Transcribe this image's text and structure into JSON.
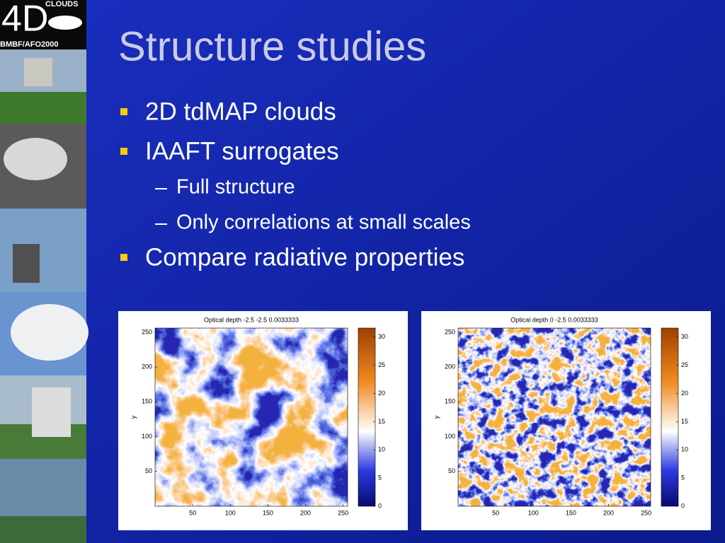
{
  "sidebar": {
    "logo_big": "4D",
    "logo_top": "CLOUDS",
    "logo_bottom": "BMBF/AFO2000"
  },
  "title": "Structure studies",
  "bullets": [
    {
      "text": "2D tdMAP clouds"
    },
    {
      "text": "IAAFT surrogates",
      "sub": [
        "Full structure",
        "Only correlations at small scales"
      ]
    },
    {
      "text": "Compare radiative properties"
    }
  ],
  "figures": [
    {
      "title": "Optical depth -2.5 -2.5 0.0033333",
      "ylabel": "y",
      "xlim": [
        0,
        256
      ],
      "ylim": [
        0,
        256
      ],
      "xticks": [
        50,
        100,
        150,
        200,
        250
      ],
      "yticks": [
        50,
        100,
        150,
        200,
        250
      ],
      "clim": [
        0,
        31.6
      ],
      "cticks": [
        0,
        5,
        10,
        15,
        20,
        25,
        30
      ]
    },
    {
      "title": "Optical depth 0 -2.5 0.0033333",
      "ylabel": "y",
      "xlim": [
        0,
        256
      ],
      "ylim": [
        0,
        256
      ],
      "xticks": [
        50,
        100,
        150,
        200,
        250
      ],
      "yticks": [
        50,
        100,
        150,
        200,
        250
      ],
      "clim": [
        0,
        31.6
      ],
      "cticks": [
        0,
        5,
        10,
        15,
        20,
        25,
        30
      ]
    }
  ]
}
